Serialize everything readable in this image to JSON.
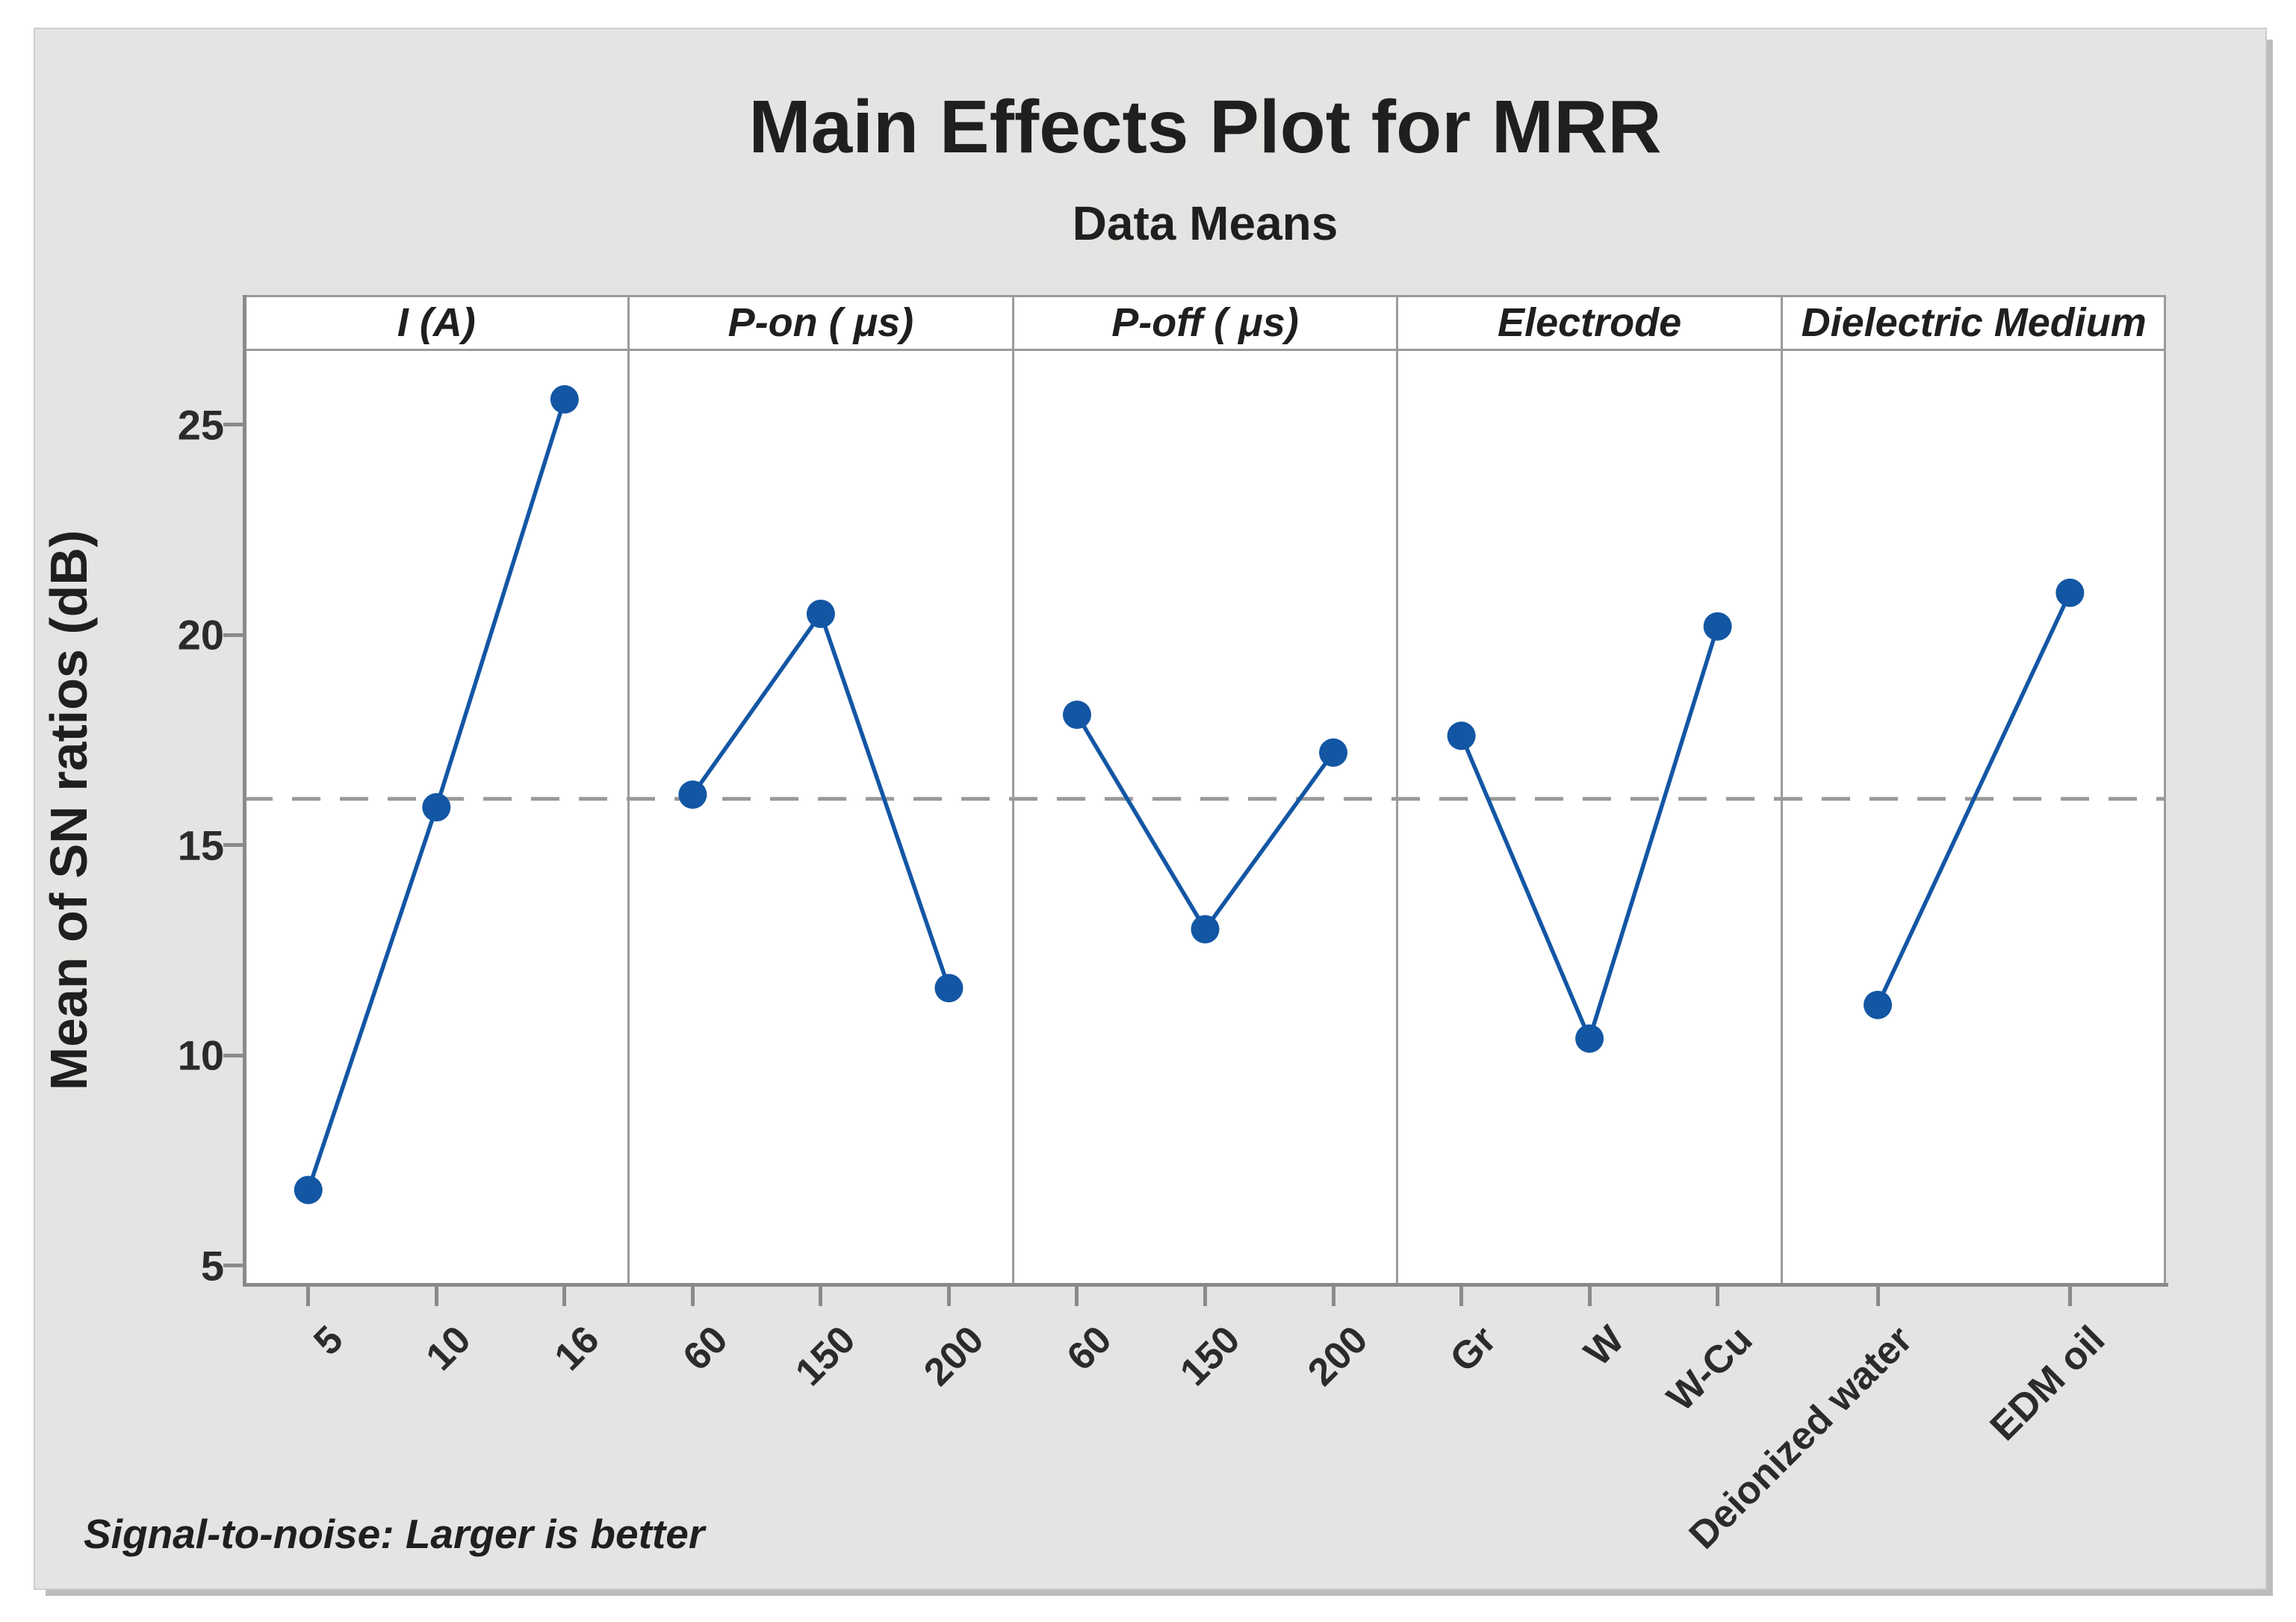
{
  "figure": {
    "title": "Main Effects Plot for MRR",
    "subtitle": "Data Means",
    "y_axis_title": "Mean of SN ratios (dB)",
    "footnote": "Signal-to-noise: Larger is better"
  },
  "colors": {
    "page_bg": "#ffffff",
    "figure_bg": "#e5e4e2",
    "panel_bg": "#ffffff",
    "frame": "#9b9b9b",
    "axis": "#8a8a8a",
    "series": "#1356a4",
    "mean_line": "#999999",
    "text": "#1f1f1f",
    "tick_text": "#2b2b2b"
  },
  "chart_data": {
    "type": "line",
    "title": "Main Effects Plot for MRR",
    "subtitle": "Data Means",
    "ylabel": "Mean of SN ratios (dB)",
    "annotation": "Signal-to-noise: Larger is better",
    "grid": false,
    "legend": "none",
    "ylim": [
      4.5,
      26.75
    ],
    "yticks": [
      5,
      10,
      15,
      20,
      25
    ],
    "mean_line": 16.1,
    "mean_line_style": "dashed",
    "marker": "circle",
    "panels": [
      {
        "label": "I (A)",
        "categories": [
          "5",
          "10",
          "16"
        ],
        "values": [
          6.8,
          15.9,
          25.6
        ]
      },
      {
        "label": "P-on ( μs)",
        "categories": [
          "60",
          "150",
          "200"
        ],
        "values": [
          16.2,
          20.5,
          11.6
        ]
      },
      {
        "label": "P-off ( μs)",
        "categories": [
          "60",
          "150",
          "200"
        ],
        "values": [
          18.1,
          13.0,
          17.2
        ]
      },
      {
        "label": "Electrode",
        "categories": [
          "Gr",
          "W",
          "W-Cu"
        ],
        "values": [
          17.6,
          10.4,
          20.2
        ]
      },
      {
        "label": "Dielectric Medium",
        "categories": [
          "Deionized water",
          "EDM oil"
        ],
        "values": [
          11.2,
          21.0
        ]
      }
    ]
  }
}
